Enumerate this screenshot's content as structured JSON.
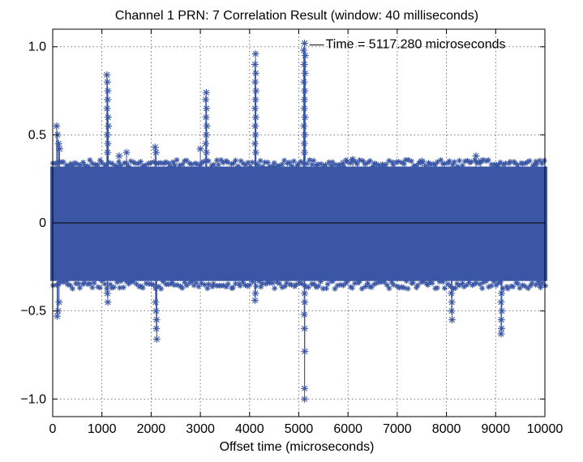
{
  "chart_data": {
    "type": "scatter",
    "title": "Channel 1  PRN: 7  Correlation Result  (window: 40 milliseconds)",
    "xlabel": "Offset time (microseconds)",
    "ylabel": "",
    "xlim": [
      0,
      10000
    ],
    "ylim": [
      -1.1,
      1.1
    ],
    "x_ticks": [
      0,
      1000,
      2000,
      3000,
      4000,
      5000,
      6000,
      7000,
      8000,
      9000,
      10000
    ],
    "x_tick_labels": [
      "0",
      "1000",
      "2000",
      "3000",
      "4000",
      "5000",
      "6000",
      "7000",
      "8000",
      "9000",
      "10000"
    ],
    "y_ticks": [
      1.0,
      0.5,
      0,
      -0.5,
      -1.0
    ],
    "y_tick_labels": [
      "1.0",
      "0.5",
      "0",
      "−0.5",
      "−1.0"
    ],
    "grid": true,
    "grid_style": "dotted",
    "marker": "asterisk",
    "series_color": "#3a56a5",
    "zero_line_color": "#000000",
    "noise_band": [
      -0.33,
      0.32
    ],
    "series": [
      {
        "points": [
          {
            "x": 80,
            "y": 0.55
          },
          {
            "x": 100,
            "y": 0.5
          },
          {
            "x": 120,
            "y": 0.45
          },
          {
            "x": 140,
            "y": 0.42
          },
          {
            "x": 90,
            "y": -0.53
          },
          {
            "x": 110,
            "y": -0.5
          },
          {
            "x": 130,
            "y": -0.45
          },
          {
            "x": 1100,
            "y": 0.84
          },
          {
            "x": 1110,
            "y": 0.8
          },
          {
            "x": 1120,
            "y": 0.75
          },
          {
            "x": 1115,
            "y": 0.7
          },
          {
            "x": 1105,
            "y": 0.65
          },
          {
            "x": 1125,
            "y": 0.6
          },
          {
            "x": 1130,
            "y": 0.55
          },
          {
            "x": 1110,
            "y": 0.5
          },
          {
            "x": 1120,
            "y": 0.45
          },
          {
            "x": 1115,
            "y": 0.4
          },
          {
            "x": 1110,
            "y": -0.4
          },
          {
            "x": 1120,
            "y": -0.45
          },
          {
            "x": 1500,
            "y": 0.4
          },
          {
            "x": 1350,
            "y": 0.38
          },
          {
            "x": 2080,
            "y": 0.43
          },
          {
            "x": 2100,
            "y": 0.4
          },
          {
            "x": 2090,
            "y": -0.45
          },
          {
            "x": 2100,
            "y": -0.5
          },
          {
            "x": 2110,
            "y": -0.55
          },
          {
            "x": 2105,
            "y": -0.6
          },
          {
            "x": 2115,
            "y": -0.66
          },
          {
            "x": 3120,
            "y": 0.74
          },
          {
            "x": 3110,
            "y": 0.7
          },
          {
            "x": 3125,
            "y": 0.65
          },
          {
            "x": 3115,
            "y": 0.6
          },
          {
            "x": 3130,
            "y": 0.55
          },
          {
            "x": 3120,
            "y": 0.5
          },
          {
            "x": 3110,
            "y": 0.45
          },
          {
            "x": 3125,
            "y": 0.4
          },
          {
            "x": 3000,
            "y": 0.42
          },
          {
            "x": 4120,
            "y": 0.96
          },
          {
            "x": 4110,
            "y": 0.9
          },
          {
            "x": 4125,
            "y": 0.85
          },
          {
            "x": 4115,
            "y": 0.8
          },
          {
            "x": 4130,
            "y": 0.75
          },
          {
            "x": 4120,
            "y": 0.7
          },
          {
            "x": 4110,
            "y": 0.65
          },
          {
            "x": 4125,
            "y": 0.6
          },
          {
            "x": 4115,
            "y": 0.55
          },
          {
            "x": 4120,
            "y": 0.5
          },
          {
            "x": 4110,
            "y": 0.45
          },
          {
            "x": 4125,
            "y": 0.4
          },
          {
            "x": 4120,
            "y": -0.4
          },
          {
            "x": 4110,
            "y": -0.44
          },
          {
            "x": 5117,
            "y": 1.02
          },
          {
            "x": 5100,
            "y": 0.98
          },
          {
            "x": 5130,
            "y": 0.95
          },
          {
            "x": 5110,
            "y": 0.9
          },
          {
            "x": 5125,
            "y": 0.85
          },
          {
            "x": 5105,
            "y": 0.8
          },
          {
            "x": 5120,
            "y": 0.75
          },
          {
            "x": 5115,
            "y": 0.7
          },
          {
            "x": 5110,
            "y": 0.65
          },
          {
            "x": 5125,
            "y": 0.6
          },
          {
            "x": 5105,
            "y": 0.55
          },
          {
            "x": 5120,
            "y": 0.5
          },
          {
            "x": 5110,
            "y": 0.45
          },
          {
            "x": 5115,
            "y": 0.4
          },
          {
            "x": 5117,
            "y": -0.4
          },
          {
            "x": 5120,
            "y": -0.45
          },
          {
            "x": 5110,
            "y": -0.52
          },
          {
            "x": 5115,
            "y": -0.6
          },
          {
            "x": 5120,
            "y": -0.73
          },
          {
            "x": 5117,
            "y": -0.94
          },
          {
            "x": 5117,
            "y": -1.0
          },
          {
            "x": 6100,
            "y": 0.36
          },
          {
            "x": 5900,
            "y": 0.34
          },
          {
            "x": 7500,
            "y": 0.35
          },
          {
            "x": 8600,
            "y": 0.38
          },
          {
            "x": 8700,
            "y": 0.35
          },
          {
            "x": 8100,
            "y": -0.4
          },
          {
            "x": 8110,
            "y": -0.45
          },
          {
            "x": 8105,
            "y": -0.5
          },
          {
            "x": 8115,
            "y": -0.55
          },
          {
            "x": 9120,
            "y": -0.4
          },
          {
            "x": 9110,
            "y": -0.45
          },
          {
            "x": 9125,
            "y": -0.5
          },
          {
            "x": 9115,
            "y": -0.55
          },
          {
            "x": 9120,
            "y": -0.6
          },
          {
            "x": 9110,
            "y": -0.63
          },
          {
            "x": 9800,
            "y": 0.33
          },
          {
            "x": 9900,
            "y": -0.35
          }
        ]
      }
    ],
    "annotation": {
      "text": "Time = 5117.280 microseconds",
      "x": 5117.28,
      "y": 1.02
    }
  }
}
